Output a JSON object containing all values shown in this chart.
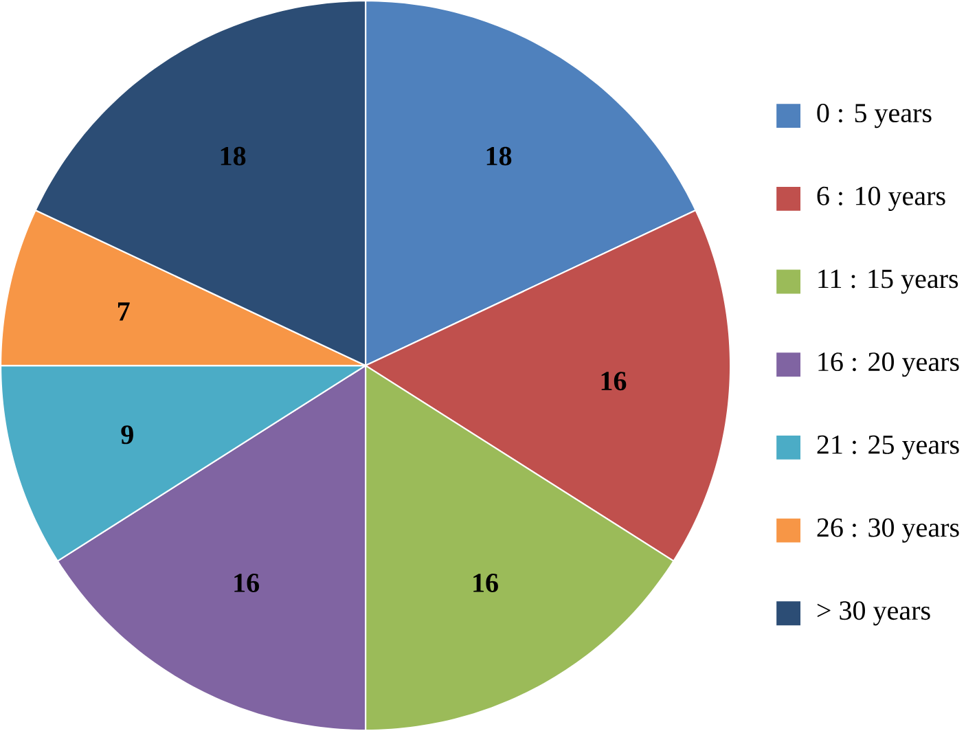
{
  "chart_data": {
    "type": "pie",
    "categories": [
      "0 : 5 years",
      "6 : 10 years",
      "11 : 15 years",
      "16 : 20 years",
      "21 : 25 years",
      "26 : 30 years",
      "> 30 years"
    ],
    "values": [
      18,
      16,
      16,
      16,
      9,
      7,
      18
    ],
    "colors": [
      "#4f81bd",
      "#c0504d",
      "#9bbb59",
      "#8064a2",
      "#4bacc6",
      "#f79646",
      "#2c4d75"
    ],
    "data_labels": true,
    "legend": "right"
  }
}
